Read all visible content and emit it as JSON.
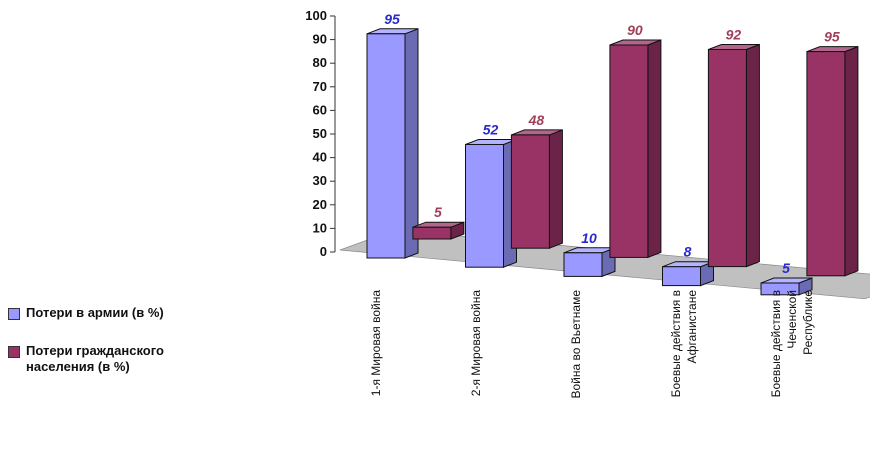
{
  "chart_data": {
    "type": "bar",
    "categories": [
      "1-я Мировая война",
      "2-я Мировая война",
      "Война во Вьетнаме",
      "Боевые действия в Афганистане",
      "Боевые действия в Чеченской Республике"
    ],
    "category_lines": [
      [
        "1-я Мировая война"
      ],
      [
        "2-я Мировая война"
      ],
      [
        "Война во Вьетнаме"
      ],
      [
        "Боевые действия в",
        "Афганистане"
      ],
      [
        "Боевые действия в",
        "Чеченской",
        "Республике"
      ]
    ],
    "series": [
      {
        "name": "Потери в армии (в %)",
        "values": [
          95,
          52,
          10,
          8,
          5
        ],
        "color": "#9999ff",
        "label_color": "#2a2ad0"
      },
      {
        "name": "Потери гражданского населения (в %)",
        "values": [
          5,
          48,
          90,
          92,
          95
        ],
        "color": "#993366",
        "label_color": "#a0405a"
      }
    ],
    "yticks": [
      "100",
      "90",
      "80",
      "70",
      "60",
      "50",
      "40",
      "30",
      "20",
      "10",
      "0"
    ],
    "ylim": [
      0,
      100
    ],
    "legend_placement": "left",
    "floor_color": "#c0c0c0"
  }
}
